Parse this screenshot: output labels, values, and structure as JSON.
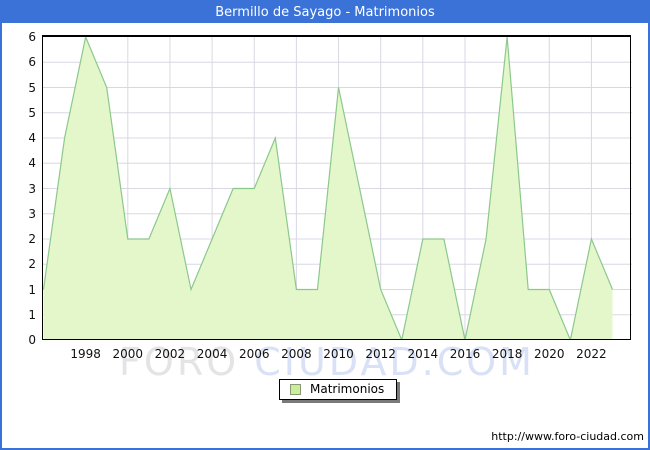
{
  "title_bar": {
    "title": "Bermillo de Sayago - Matrimonios"
  },
  "legend": {
    "label": "Matrimonios"
  },
  "watermark": {
    "part1": "FORO",
    "part2": "CIUDAD.COM"
  },
  "footer": {
    "url": "http://www.foro-ciudad.com"
  },
  "colors": {
    "frame_blue": "#3a72d8",
    "titlebar_text": "#ffffff",
    "area_fill": "#e3f7cb",
    "line_green": "#8cc88c",
    "grid": "#d8d8e4",
    "plot_border": "#000000",
    "legend_swatch_fill": "#c9ef97",
    "tick_text": "#111111"
  },
  "chart_data": {
    "type": "area",
    "title": "Bermillo de Sayago - Matrimonios",
    "series_name": "Matrimonios",
    "x": [
      1996,
      1997,
      1998,
      1999,
      2000,
      2001,
      2002,
      2003,
      2004,
      2005,
      2006,
      2007,
      2008,
      2009,
      2010,
      2011,
      2012,
      2013,
      2014,
      2015,
      2016,
      2017,
      2018,
      2019,
      2020,
      2021,
      2022,
      2023
    ],
    "values": [
      1,
      4,
      6,
      5,
      2,
      2,
      3,
      1,
      2,
      3,
      3,
      4,
      1,
      1,
      5,
      3,
      1,
      0,
      2,
      2,
      0,
      2,
      6,
      1,
      1,
      0,
      2,
      1
    ],
    "xlabel": "",
    "ylabel": "",
    "ylim": [
      0,
      6
    ],
    "y_tick_step": 0.5,
    "y_tick_label_style": "rounded-integer",
    "x_tick_years": [
      1998,
      2000,
      2002,
      2004,
      2006,
      2008,
      2010,
      2012,
      2014,
      2016,
      2018,
      2020,
      2022
    ],
    "grid": true,
    "legend_position": "bottom-center"
  }
}
